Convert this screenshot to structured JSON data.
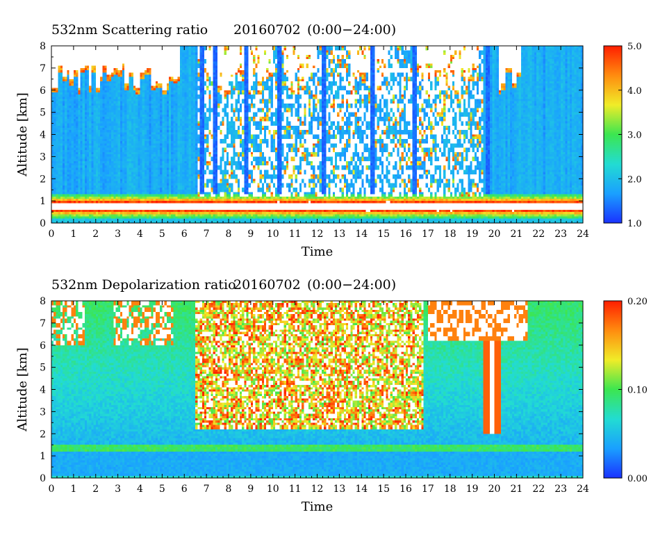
{
  "chart_data": [
    {
      "type": "heatmap",
      "title": "532nm Scattering ratio",
      "date": "20160702",
      "range": "(0:00−24:00)",
      "xlabel": "Time",
      "ylabel": "Altitude [km]",
      "xlim": [
        0,
        24
      ],
      "ylim": [
        0,
        8
      ],
      "x_ticks": [
        "0",
        "1",
        "2",
        "3",
        "4",
        "5",
        "6",
        "7",
        "8",
        "9",
        "10",
        "11",
        "12",
        "13",
        "14",
        "15",
        "16",
        "17",
        "18",
        "19",
        "20",
        "21",
        "22",
        "23",
        "24"
      ],
      "y_ticks": [
        "0",
        "1",
        "2",
        "3",
        "4",
        "5",
        "6",
        "7",
        "8"
      ],
      "colorbar": {
        "min": 1.0,
        "max": 5.0,
        "labels": [
          "1.0",
          "2.0",
          "3.0",
          "4.0",
          "5.0"
        ],
        "over_color": "#ffffff"
      },
      "features": {
        "boundary_layer_top_km": 1.1,
        "boundary_layer_peak_value": 5.0,
        "background_value": 1.8,
        "cloud_regions_hours": [
          [
            0,
            2.5
          ],
          [
            2.5,
            5.8
          ],
          [
            7.0,
            10.0
          ],
          [
            10.5,
            12.0
          ],
          [
            13.5,
            15.2
          ],
          [
            16.5,
            19.3
          ],
          [
            20.2,
            21.2
          ]
        ],
        "cloud_altitude_km": [
          6.0,
          8.0
        ],
        "clear_columns_hours": [
          6.8,
          7.4,
          8.8,
          10.3,
          12.3,
          14.5,
          16.4,
          19.7
        ]
      }
    },
    {
      "type": "heatmap",
      "title": "532nm Depolarization ratio",
      "date": "20160702",
      "range": "(0:00−24:00)",
      "xlabel": "Time",
      "ylabel": "Altitude [km]",
      "xlim": [
        0,
        24
      ],
      "ylim": [
        0,
        8
      ],
      "x_ticks": [
        "0",
        "1",
        "2",
        "3",
        "4",
        "5",
        "6",
        "7",
        "8",
        "9",
        "10",
        "11",
        "12",
        "13",
        "14",
        "15",
        "16",
        "17",
        "18",
        "19",
        "20",
        "21",
        "22",
        "23",
        "24"
      ],
      "y_ticks": [
        "0",
        "1",
        "2",
        "3",
        "4",
        "5",
        "6",
        "7",
        "8"
      ],
      "colorbar": {
        "min": 0.0,
        "max": 0.2,
        "labels": [
          "0.00",
          "0.10",
          "0.20"
        ],
        "over_color": "#ffffff"
      },
      "features": {
        "boundary_layer_top_km": 1.2,
        "low_level_value": 0.04,
        "upper_level_value": 0.08,
        "high_depol_window_hours": [
          6.5,
          16.8
        ],
        "high_depol_altitude_km": [
          2.5,
          8.0
        ],
        "narrow_cloud_column_hours": [
          19.5,
          20.3
        ]
      }
    }
  ],
  "colors": {
    "scale": [
      "#1a32ff",
      "#1aa0ff",
      "#22dcd2",
      "#3ce650",
      "#f0ec28",
      "#ff8c0f",
      "#ff1e00"
    ]
  }
}
